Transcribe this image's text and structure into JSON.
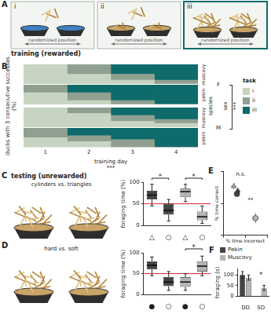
{
  "panel_labels": [
    "A",
    "B",
    "C",
    "D",
    "E",
    "F"
  ],
  "training": {
    "title": "training (rewarded)",
    "tasks": [
      {
        "label": "i",
        "note": "randomized position"
      },
      {
        "label": "ii",
        "note": "randomized position"
      },
      {
        "label": "iii",
        "note": "randomized position"
      }
    ]
  },
  "testing": {
    "title": "testing (unrewarded)",
    "tests": [
      "cylinders vs. triangles",
      "hard vs. soft"
    ]
  },
  "species_key": [
    {
      "name": "Pekin",
      "color": "#444444"
    },
    {
      "name": "Muscovy",
      "color": "#b4b4b4"
    }
  ],
  "chart_data": [
    {
      "type": "bar",
      "stacked": true,
      "y_label": "ducks with 3 consecutive successes (%)",
      "x_label": "training day",
      "categories": [
        "1",
        "2",
        "3",
        "4"
      ],
      "ylim": [
        0,
        100
      ],
      "tick_labels": "x",
      "legend_title": "task",
      "series": [
        {
          "name": "i",
          "color": "#c6d4c1"
        },
        {
          "name": "ii",
          "color": "#8fa091"
        },
        {
          "name": "iii",
          "color": "#0f6b6b"
        }
      ],
      "row_titles": [
        "species",
        "sex"
      ],
      "groups": [
        {
          "sex": "F",
          "rows": [
            {
              "species": "muscovy",
              "values": [
                [
                  100,
                  50,
                  20,
                  0
                ],
                [
                  0,
                  50,
                  30,
                  20
                ],
                [
                  0,
                  0,
                  50,
                  80
                ]
              ]
            },
            {
              "species": "pekin",
              "values": [
                [
                  60,
                  20,
                  0,
                  0
                ],
                [
                  40,
                  40,
                  20,
                  0
                ],
                [
                  0,
                  40,
                  80,
                  100
                ]
              ]
            }
          ]
        },
        {
          "sex": "M",
          "rows": [
            {
              "species": "muscovy",
              "values": [
                [
                  100,
                  70,
                  30,
                  20
                ],
                [
                  0,
                  30,
                  30,
                  20
                ],
                [
                  0,
                  0,
                  40,
                  60
                ]
              ]
            },
            {
              "species": "pekin",
              "values": [
                [
                  50,
                  30,
                  0,
                  0
                ],
                [
                  50,
                  30,
                  40,
                  0
                ],
                [
                  0,
                  40,
                  60,
                  100
                ]
              ]
            }
          ]
        }
      ],
      "annotations": [
        "***",
        "***"
      ]
    },
    {
      "type": "box",
      "y_label": "foraging time (%)",
      "categories": [
        "△",
        "○",
        "△",
        "○"
      ],
      "ylim": [
        0,
        100
      ],
      "yticks": [
        0,
        50,
        100
      ],
      "chance_level": 50,
      "series": [
        {
          "name": "Pekin",
          "color": "#444444",
          "boxes": [
            {
              "min": 45,
              "q1": 60,
              "median": 70,
              "q3": 80,
              "max": 95
            },
            {
              "min": 10,
              "q1": 25,
              "median": 35,
              "q3": 50,
              "max": 60
            },
            null,
            null
          ]
        },
        {
          "name": "Muscovy",
          "color": "#b4b4b4",
          "boxes": [
            null,
            null,
            {
              "min": 55,
              "q1": 65,
              "median": 78,
              "q3": 85,
              "max": 95
            },
            {
              "min": 5,
              "q1": 12,
              "median": 20,
              "q3": 32,
              "max": 45
            }
          ]
        }
      ],
      "annotations": [
        "*",
        "*"
      ]
    },
    {
      "type": "box",
      "y_label": "foraging time (%)",
      "categories": [
        "●",
        "○",
        "●",
        "○"
      ],
      "ylim": [
        0,
        100
      ],
      "yticks": [
        0,
        50,
        100
      ],
      "chance_level": 50,
      "series": [
        {
          "name": "Pekin",
          "color": "#444444",
          "boxes": [
            {
              "min": 45,
              "q1": 60,
              "median": 70,
              "q3": 80,
              "max": 90
            },
            {
              "min": 10,
              "q1": 20,
              "median": 30,
              "q3": 42,
              "max": 55
            },
            null,
            null
          ]
        },
        {
          "name": "Muscovy",
          "color": "#b4b4b4",
          "boxes": [
            null,
            null,
            {
              "min": 10,
              "q1": 18,
              "median": 30,
              "q3": 42,
              "max": 50
            },
            {
              "min": 45,
              "q1": 55,
              "median": 68,
              "q3": 80,
              "max": 92
            }
          ]
        }
      ],
      "annotations": [
        "*"
      ]
    },
    {
      "type": "scatter",
      "x_label": "% time incorrect",
      "y_label": "% time correct",
      "xlim": [
        0,
        100
      ],
      "ylim": [
        0,
        100
      ],
      "xticks": [
        0,
        50,
        100
      ],
      "yticks": [
        0,
        50,
        100
      ],
      "tick_labels": false,
      "series": [
        {
          "name": "Pekin",
          "color": "#444444",
          "marker": "triangle",
          "x": [
            33
          ],
          "y": [
            70
          ],
          "x_error": [
            4
          ],
          "y_error": [
            4
          ]
        },
        {
          "name": "Pekin",
          "color": "#444444",
          "marker": "circle",
          "x": [
            31
          ],
          "y": [
            65
          ],
          "x_error": [
            4
          ],
          "y_error": [
            4
          ]
        },
        {
          "name": "Muscovy",
          "color": "#b4b4b4",
          "marker": "triangle",
          "x": [
            24
          ],
          "y": [
            77
          ],
          "x_error": [
            6
          ],
          "y_error": [
            5
          ]
        },
        {
          "name": "Muscovy",
          "color": "#b4b4b4",
          "marker": "circle",
          "x": [
            73
          ],
          "y": [
            27
          ],
          "x_error": [
            8
          ],
          "y_error": [
            8
          ]
        }
      ],
      "annotations": [
        "n.s.",
        "**"
      ]
    },
    {
      "type": "bar",
      "y_label": "foraging (s)",
      "categories": [
        "DD",
        "SD"
      ],
      "ylim": [
        0,
        130
      ],
      "yticks": [
        0,
        50,
        100
      ],
      "series": [
        {
          "name": "Pekin",
          "color": "#444444",
          "values": [
            100,
            null
          ],
          "errors": [
            16,
            null
          ]
        },
        {
          "name": "Muscovy",
          "color": "#b4b4b4",
          "values": [
            88,
            40
          ],
          "errors": [
            12,
            12
          ]
        }
      ],
      "annotations": [
        "*"
      ]
    }
  ]
}
